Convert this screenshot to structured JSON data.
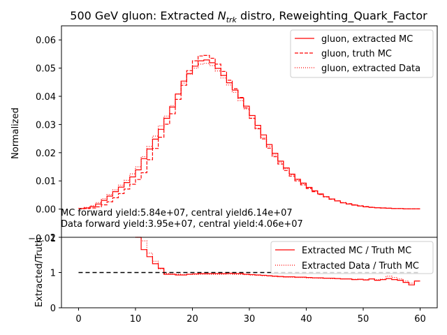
{
  "chart_data": [
    {
      "type": "line",
      "title_prefix": "500 GeV gluon: Extracted ",
      "title_var_main": "N",
      "title_var_sub": "trk",
      "title_suffix": " distro, Reweighting_Quark_Factor",
      "ylabel": "Normalized",
      "xlim": [
        -3,
        63
      ],
      "ylim": [
        -0.01,
        0.065
      ],
      "yticks": [
        0.0,
        0.01,
        0.02,
        0.03,
        0.04,
        0.05,
        0.06
      ],
      "ytick_labels": [
        "0.00",
        "0.01",
        "0.02",
        "0.03",
        "0.04",
        "0.05",
        "0.06"
      ],
      "overlapping_label": "−0.01",
      "legend_position": "top-right",
      "annotations": [
        "MC forward yield:5.84e+07, central yield6.14e+07",
        "Data forward yield:3.95e+07, central yield:4.06e+07"
      ],
      "bin_edges": [
        0,
        1,
        2,
        3,
        4,
        5,
        6,
        7,
        8,
        9,
        10,
        11,
        12,
        13,
        14,
        15,
        16,
        17,
        18,
        19,
        20,
        21,
        22,
        23,
        24,
        25,
        26,
        27,
        28,
        29,
        30,
        31,
        32,
        33,
        34,
        35,
        36,
        37,
        38,
        39,
        40,
        41,
        42,
        43,
        44,
        45,
        46,
        47,
        48,
        49,
        50,
        51,
        52,
        53,
        54,
        55,
        56,
        57,
        58,
        59,
        60
      ],
      "series": [
        {
          "name": "gluon, extracted MC",
          "style": "solid",
          "color": "#ff0000",
          "values": [
            0.0002,
            0.0004,
            0.0009,
            0.0018,
            0.0031,
            0.0046,
            0.0062,
            0.0078,
            0.0094,
            0.0114,
            0.0139,
            0.0179,
            0.0213,
            0.0248,
            0.0283,
            0.0322,
            0.0362,
            0.0408,
            0.0454,
            0.0481,
            0.0507,
            0.0526,
            0.0529,
            0.0519,
            0.0499,
            0.0474,
            0.0448,
            0.0422,
            0.0394,
            0.0365,
            0.0332,
            0.0297,
            0.0263,
            0.0229,
            0.0198,
            0.017,
            0.0146,
            0.0124,
            0.0106,
            0.0092,
            0.0077,
            0.0065,
            0.0054,
            0.0044,
            0.0036,
            0.0029,
            0.0022,
            0.0018,
            0.0014,
            0.0011,
            0.0008,
            0.0006,
            0.0005,
            0.0004,
            0.0003,
            0.0002,
            0.0002,
            0.0001,
            0.0001,
            0.0001
          ]
        },
        {
          "name": "gluon, truth MC",
          "style": "dashed",
          "color": "#ff0000",
          "values": [
            0.0001,
            0.0002,
            0.0004,
            0.0008,
            0.0015,
            0.0026,
            0.004,
            0.0055,
            0.0071,
            0.0088,
            0.0105,
            0.0129,
            0.0175,
            0.0215,
            0.0255,
            0.0301,
            0.0338,
            0.0389,
            0.0439,
            0.0491,
            0.0526,
            0.0543,
            0.0545,
            0.0535,
            0.0514,
            0.0488,
            0.0457,
            0.0427,
            0.0396,
            0.0359,
            0.0322,
            0.0285,
            0.0249,
            0.0216,
            0.0186,
            0.016,
            0.0137,
            0.0117,
            0.01,
            0.0086,
            0.0073,
            0.0062,
            0.0052,
            0.0043,
            0.0035,
            0.0029,
            0.0023,
            0.0019,
            0.0015,
            0.0012,
            0.0009,
            0.0007,
            0.0005,
            0.0004,
            0.0003,
            0.0002,
            0.0002,
            0.0001,
            0.0001,
            0.0001
          ]
        },
        {
          "name": "gluon, extracted Data",
          "style": "dotted",
          "color": "#ff0000",
          "values": [
            0.0003,
            0.0006,
            0.0012,
            0.0023,
            0.0037,
            0.0052,
            0.0068,
            0.0085,
            0.0102,
            0.0125,
            0.015,
            0.0186,
            0.0222,
            0.0259,
            0.0295,
            0.033,
            0.0367,
            0.0409,
            0.0447,
            0.0478,
            0.05,
            0.0514,
            0.0517,
            0.0509,
            0.049,
            0.0465,
            0.044,
            0.0414,
            0.0385,
            0.0355,
            0.0322,
            0.0287,
            0.0254,
            0.0222,
            0.0192,
            0.0166,
            0.0143,
            0.0122,
            0.0104,
            0.009,
            0.0076,
            0.0064,
            0.0053,
            0.0044,
            0.0036,
            0.0029,
            0.0023,
            0.0018,
            0.0014,
            0.0011,
            0.0008,
            0.0006,
            0.0005,
            0.0004,
            0.0003,
            0.0002,
            0.0002,
            0.0001,
            0.0001,
            0.0001
          ]
        }
      ]
    },
    {
      "type": "line",
      "ylabel": "Extracted/Truth",
      "xlim": [
        -3,
        63
      ],
      "ylim": [
        0,
        2
      ],
      "xticks": [
        0,
        10,
        20,
        30,
        40,
        50,
        60
      ],
      "xtick_labels": [
        "0",
        "10",
        "20",
        "30",
        "40",
        "50",
        "60"
      ],
      "yticks": [
        0,
        1,
        2
      ],
      "ytick_labels": [
        "0",
        "1",
        "2"
      ],
      "reference_line": {
        "y": 1,
        "x_range": [
          0,
          60
        ],
        "style": "dashed",
        "color": "#000000"
      },
      "legend_position": "top-right",
      "bin_edges": [
        10,
        11,
        12,
        13,
        14,
        15,
        16,
        17,
        18,
        19,
        20,
        21,
        22,
        23,
        24,
        25,
        26,
        27,
        28,
        29,
        30,
        31,
        32,
        33,
        34,
        35,
        36,
        37,
        38,
        39,
        40,
        41,
        42,
        43,
        44,
        45,
        46,
        47,
        48,
        49,
        50,
        51,
        52,
        53,
        54,
        55,
        56,
        57,
        58,
        59,
        60
      ],
      "series": [
        {
          "name": "Extracted MC / Truth MC",
          "style": "solid",
          "color": "#ff0000",
          "values": [
            2.4,
            1.65,
            1.45,
            1.25,
            1.12,
            0.95,
            0.95,
            0.93,
            0.93,
            0.95,
            0.96,
            0.97,
            0.97,
            0.97,
            0.97,
            0.97,
            0.98,
            0.97,
            0.97,
            0.95,
            0.94,
            0.93,
            0.92,
            0.91,
            0.9,
            0.89,
            0.88,
            0.88,
            0.87,
            0.87,
            0.86,
            0.85,
            0.85,
            0.84,
            0.84,
            0.83,
            0.82,
            0.82,
            0.8,
            0.81,
            0.79,
            0.82,
            0.78,
            0.8,
            0.83,
            0.8,
            0.78,
            0.72,
            0.65,
            0.76
          ]
        },
        {
          "name": "Extracted Data / Truth MC",
          "style": "dotted",
          "color": "#ff0000",
          "values": [
            2.0,
            1.9,
            1.55,
            1.32,
            1.1,
            0.97,
            0.96,
            0.95,
            0.94,
            0.95,
            0.95,
            0.95,
            0.95,
            0.95,
            0.95,
            0.95,
            0.95,
            0.95,
            0.95,
            0.94,
            0.93,
            0.92,
            0.91,
            0.9,
            0.89,
            0.88,
            0.87,
            0.87,
            0.86,
            0.86,
            0.85,
            0.85,
            0.84,
            0.84,
            0.83,
            0.83,
            0.82,
            0.82,
            0.81,
            0.8,
            0.8,
            0.82,
            0.8,
            0.81,
            0.9,
            0.86,
            0.82,
            0.76,
            0.7,
            0.76
          ]
        }
      ]
    }
  ]
}
